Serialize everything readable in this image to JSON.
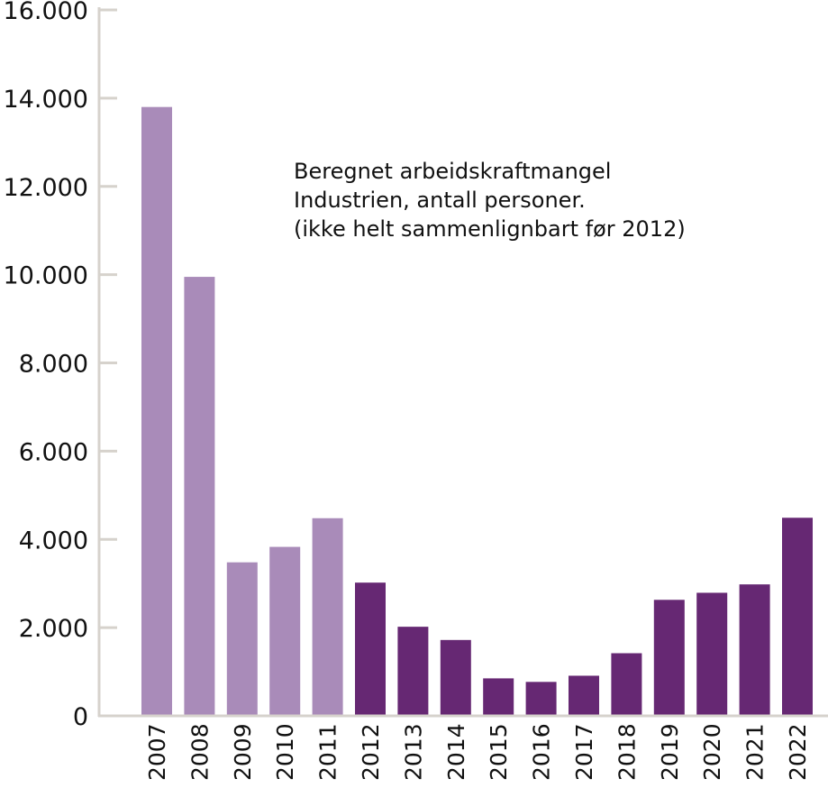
{
  "chart_data": {
    "type": "bar",
    "title": "",
    "xlabel": "",
    "ylabel": "",
    "annotation": [
      "Beregnet arbeidskraftmangel",
      "Industrien, antall personer.",
      "(ikke helt sammenlignbart før 2012)"
    ],
    "categories": [
      "2007",
      "2008",
      "2009",
      "2010",
      "2011",
      "2012",
      "2013",
      "2014",
      "2015",
      "2016",
      "2017",
      "2018",
      "2019",
      "2020",
      "2021",
      "2022"
    ],
    "values": [
      13800,
      9950,
      3480,
      3830,
      4480,
      3020,
      2020,
      1720,
      850,
      770,
      910,
      1420,
      2630,
      2790,
      2980,
      4490
    ],
    "ylim": [
      0,
      16000
    ],
    "yticks": [
      0,
      2000,
      4000,
      6000,
      8000,
      10000,
      12000,
      14000,
      16000
    ],
    "ytick_labels": [
      "0",
      "2.000",
      "4.000",
      "6.000",
      "8.000",
      "10.000",
      "12.000",
      "14.000",
      "16.000"
    ],
    "grid": false,
    "colors": {
      "before_2012": "#a98bb9",
      "from_2012": "#662873",
      "axis": "#d6d2cc"
    }
  }
}
